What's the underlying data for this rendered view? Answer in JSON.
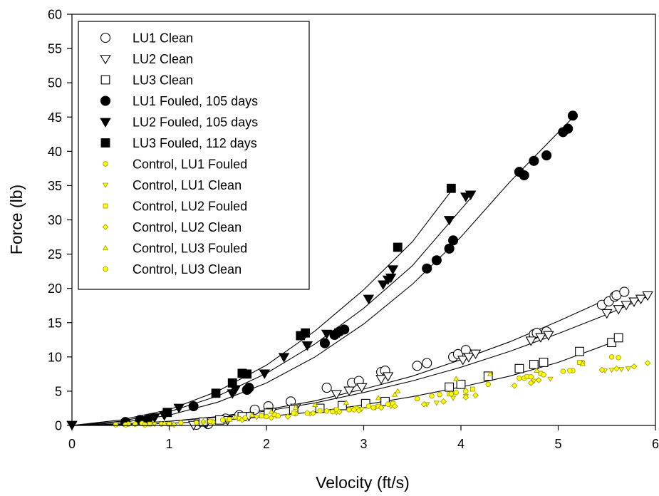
{
  "chart_data": {
    "type": "scatter",
    "title": "",
    "xlabel": "Velocity (ft/s)",
    "ylabel": "Force (lb)",
    "xlim": [
      0,
      6
    ],
    "ylim": [
      0,
      60
    ],
    "xticks": [
      0,
      1,
      2,
      3,
      4,
      5,
      6
    ],
    "yticks": [
      0,
      5,
      10,
      15,
      20,
      25,
      30,
      35,
      40,
      45,
      50,
      55,
      60
    ],
    "grid": false,
    "legend_position": "top-left",
    "series": [
      {
        "name": "LU1 Clean",
        "marker": "circle",
        "fill": "#ffffff",
        "stroke": "#000000",
        "size": "large",
        "x": [
          1.28,
          1.4,
          1.58,
          1.72,
          1.88,
          2.02,
          2.25,
          2.62,
          2.88,
          2.95,
          3.18,
          3.22,
          3.55,
          3.65,
          3.92,
          3.97,
          4.05,
          4.75,
          4.78,
          4.88,
          5.45,
          5.52,
          5.58,
          5.6,
          5.68
        ],
        "y": [
          0.1,
          0.2,
          1.0,
          1.5,
          2.3,
          2.8,
          3.5,
          5.5,
          6.2,
          6.5,
          7.8,
          8.0,
          8.7,
          9.1,
          10.0,
          10.4,
          11.0,
          13.3,
          13.5,
          13.7,
          17.6,
          18.1,
          18.8,
          19.0,
          19.5
        ]
      },
      {
        "name": "LU2 Clean",
        "marker": "triangle-down",
        "fill": "#ffffff",
        "stroke": "#000000",
        "size": "large",
        "x": [
          1.25,
          1.38,
          1.6,
          1.82,
          2.05,
          2.3,
          2.72,
          2.85,
          2.98,
          3.18,
          3.25,
          4.02,
          4.08,
          4.15,
          4.72,
          4.82,
          4.9,
          5.5,
          5.62,
          5.7,
          5.78,
          5.85,
          5.92
        ],
        "y": [
          0.1,
          0.3,
          0.8,
          1.4,
          2.0,
          2.6,
          4.6,
          5.1,
          5.6,
          6.8,
          7.2,
          9.6,
          10.0,
          10.5,
          12.4,
          12.9,
          13.2,
          16.4,
          17.0,
          17.6,
          18.1,
          18.5,
          19.0
        ]
      },
      {
        "name": "LU3 Clean",
        "marker": "square",
        "fill": "#ffffff",
        "stroke": "#000000",
        "size": "large",
        "x": [
          1.35,
          1.52,
          1.75,
          2.02,
          2.28,
          2.55,
          2.78,
          3.02,
          3.22,
          3.88,
          4.0,
          4.28,
          4.6,
          4.75,
          4.85,
          5.22,
          5.55,
          5.62
        ],
        "y": [
          0.5,
          0.8,
          1.3,
          1.8,
          2.3,
          2.5,
          2.9,
          3.2,
          3.5,
          5.6,
          6.0,
          7.2,
          8.3,
          8.9,
          9.2,
          10.8,
          12.1,
          12.8
        ]
      },
      {
        "name": "LU1 Fouled, 105 days",
        "marker": "circle",
        "fill": "#000000",
        "stroke": "#000000",
        "size": "large",
        "x": [
          0.55,
          0.7,
          0.78,
          1.25,
          1.8,
          1.82,
          2.6,
          2.7,
          2.75,
          2.8,
          3.65,
          3.75,
          3.88,
          3.92,
          4.6,
          4.65,
          4.75,
          4.88,
          5.05,
          5.1,
          5.15
        ],
        "y": [
          0.5,
          0.8,
          0.9,
          2.8,
          5.2,
          5.5,
          12.0,
          13.2,
          13.7,
          14.0,
          22.9,
          24.1,
          25.8,
          27.0,
          37.0,
          36.5,
          38.6,
          39.4,
          42.8,
          43.3,
          45.2
        ]
      },
      {
        "name": "LU2 Fouled, 105 days",
        "marker": "triangle-down",
        "fill": "#000000",
        "stroke": "#000000",
        "size": "large",
        "x": [
          0,
          0.85,
          0.95,
          1.1,
          1.65,
          1.68,
          1.98,
          2.18,
          2.42,
          2.62,
          2.75,
          3.05,
          3.2,
          3.25,
          3.28,
          3.3,
          3.88,
          4.05,
          4.1
        ],
        "y": [
          0.1,
          1.2,
          1.5,
          2.6,
          4.7,
          5.3,
          7.6,
          10.0,
          11.7,
          13.4,
          13.6,
          18.5,
          20.6,
          21.3,
          21.6,
          22.8,
          30.0,
          33.4,
          33.7
        ]
      },
      {
        "name": "LU3 Fouled, 112 days",
        "marker": "square",
        "fill": "#000000",
        "stroke": "#000000",
        "size": "large",
        "x": [
          0.98,
          1.48,
          1.65,
          1.75,
          1.8,
          2.35,
          2.4,
          3.35,
          3.9
        ],
        "y": [
          1.9,
          4.7,
          6.2,
          7.6,
          7.5,
          13.1,
          13.5,
          26.0,
          34.6
        ]
      },
      {
        "name": "Control, LU1 Fouled",
        "marker": "circle",
        "fill": "#ffff00",
        "stroke": "#9a9a00",
        "size": "small",
        "x": [
          0.45,
          0.58,
          0.65,
          0.72,
          0.92,
          1.28,
          1.55,
          1.72,
          2.0,
          2.3,
          2.62,
          2.85,
          3.05,
          3.28,
          3.55,
          3.78,
          3.95,
          4.28,
          4.65,
          4.82,
          5.15,
          5.25,
          5.55,
          5.62
        ],
        "y": [
          0.1,
          0.2,
          0.2,
          0.3,
          0.2,
          0.4,
          0.8,
          1.0,
          1.3,
          1.7,
          2.1,
          2.3,
          2.8,
          3.0,
          3.9,
          4.5,
          4.8,
          6.0,
          6.9,
          7.6,
          8.0,
          9.2,
          10.0,
          9.9
        ]
      },
      {
        "name": "Control, LU1 Clean",
        "marker": "triangle-down",
        "fill": "#ffff00",
        "stroke": "#9a9a00",
        "size": "small",
        "x": [
          0.85,
          1.35,
          1.6,
          1.9,
          2.1,
          2.45,
          2.72,
          2.98,
          3.12,
          3.28,
          3.65,
          3.75,
          3.92,
          4.05,
          4.75,
          4.92,
          5.48,
          5.55,
          5.65,
          5.72
        ],
        "y": [
          0.2,
          0.4,
          0.7,
          1.2,
          1.4,
          1.7,
          1.9,
          2.4,
          2.6,
          2.8,
          3.1,
          3.3,
          4.0,
          4.3,
          6.5,
          6.8,
          8.0,
          8.1,
          8.2,
          8.3
        ]
      },
      {
        "name": "Control, LU2 Fouled",
        "marker": "square",
        "fill": "#ffff00",
        "stroke": "#9a9a00",
        "size": "small",
        "x": [
          0.8,
          1.0,
          1.45,
          1.62,
          1.95,
          2.08,
          2.28,
          2.55,
          2.72,
          2.92,
          3.15,
          3.3,
          3.88,
          4.12,
          4.68,
          4.82,
          5.22
        ],
        "y": [
          0.2,
          0.2,
          0.5,
          0.9,
          1.4,
          1.6,
          1.8,
          2.1,
          2.3,
          2.5,
          2.8,
          3.2,
          4.6,
          5.3,
          7.1,
          7.6,
          9.2
        ]
      },
      {
        "name": "Control, LU2 Clean",
        "marker": "diamond",
        "fill": "#ffff00",
        "stroke": "#9a9a00",
        "size": "small",
        "x": [
          1.05,
          1.45,
          1.75,
          2.05,
          2.22,
          2.48,
          2.75,
          2.95,
          3.18,
          3.32,
          3.62,
          3.82,
          4.05,
          4.15,
          4.55,
          4.72,
          4.8,
          5.45,
          5.6,
          5.78,
          5.92
        ],
        "y": [
          0.1,
          0.5,
          0.8,
          1.1,
          1.3,
          1.8,
          2.0,
          2.2,
          2.6,
          2.8,
          3.1,
          3.5,
          4.1,
          4.4,
          5.8,
          6.2,
          6.6,
          8.1,
          8.3,
          8.6,
          9.1
        ]
      },
      {
        "name": "Control, LU3 Fouled",
        "marker": "triangle-up",
        "fill": "#ffff00",
        "stroke": "#9a9a00",
        "size": "small",
        "x": [
          0.95,
          1.35,
          1.68,
          1.85,
          2.05,
          2.3,
          2.5,
          2.82,
          3.15,
          3.32,
          3.35,
          3.95,
          4.3,
          4.78,
          5.25
        ],
        "y": [
          0.3,
          0.6,
          1.2,
          1.5,
          2.0,
          2.6,
          3.0,
          3.3,
          4.0,
          4.5,
          5.0,
          6.8,
          7.5,
          8.0,
          9.0
        ]
      },
      {
        "name": "Control, LU3 Clean",
        "marker": "circle",
        "fill": "#ffff00",
        "stroke": "#9a9a00",
        "size": "small",
        "x": [
          0.55,
          0.75,
          1.12,
          1.42,
          1.78,
          2.12,
          2.42,
          2.68,
          2.9,
          3.1,
          3.25,
          3.7,
          3.9,
          4.05,
          4.6,
          4.72,
          4.85,
          5.05,
          5.12
        ],
        "y": [
          0.1,
          0.1,
          0.4,
          0.6,
          1.1,
          1.4,
          1.8,
          2.0,
          2.3,
          2.6,
          3.1,
          4.3,
          4.6,
          5.0,
          6.9,
          7.1,
          7.4,
          7.9,
          8.0
        ]
      }
    ],
    "fit_curves": [
      {
        "name": "",
        "x": [
          0,
          0.5,
          1,
          1.5,
          2,
          2.5,
          3,
          3.5,
          3.92
        ],
        "y": [
          0,
          0.8,
          2.3,
          5.0,
          8.8,
          13.8,
          19.8,
          26.8,
          34.6
        ]
      },
      {
        "name": "",
        "x": [
          0,
          0.5,
          1,
          1.5,
          2,
          2.5,
          3,
          3.5,
          4.12
        ],
        "y": [
          0,
          0.6,
          2.0,
          4.3,
          7.6,
          11.9,
          17.1,
          23.3,
          33.5
        ]
      },
      {
        "name": "",
        "x": [
          0,
          0.5,
          1,
          1.5,
          2,
          2.5,
          3,
          3.5,
          4,
          4.5,
          5.17
        ],
        "y": [
          0,
          0.4,
          1.5,
          3.4,
          6.2,
          10.0,
          14.8,
          20.6,
          27.5,
          35.5,
          45.2
        ]
      },
      {
        "name": "",
        "x": [
          0,
          0.5,
          1,
          1.5,
          2,
          2.5,
          3,
          3.5,
          4,
          4.5,
          5,
          5.7
        ],
        "y": [
          0,
          0.2,
          0.6,
          1.3,
          2.3,
          3.6,
          5.3,
          7.2,
          9.6,
          12.2,
          15.2,
          19.7
        ]
      },
      {
        "name": "",
        "x": [
          0,
          0.5,
          1,
          1.5,
          2,
          2.5,
          3,
          3.5,
          4,
          4.5,
          5,
          5.5,
          5.95
        ],
        "y": [
          0,
          0.2,
          0.6,
          1.2,
          2.1,
          3.3,
          4.8,
          6.5,
          8.5,
          10.8,
          13.4,
          16.2,
          19.0
        ]
      },
      {
        "name": "",
        "x": [
          0,
          0.5,
          1,
          1.5,
          2,
          2.5,
          3,
          3.5,
          4,
          4.5,
          5,
          5.65
        ],
        "y": [
          0,
          0.1,
          0.3,
          0.7,
          1.3,
          2.0,
          3.0,
          4.2,
          5.6,
          7.2,
          9.2,
          12.6
        ]
      }
    ]
  }
}
